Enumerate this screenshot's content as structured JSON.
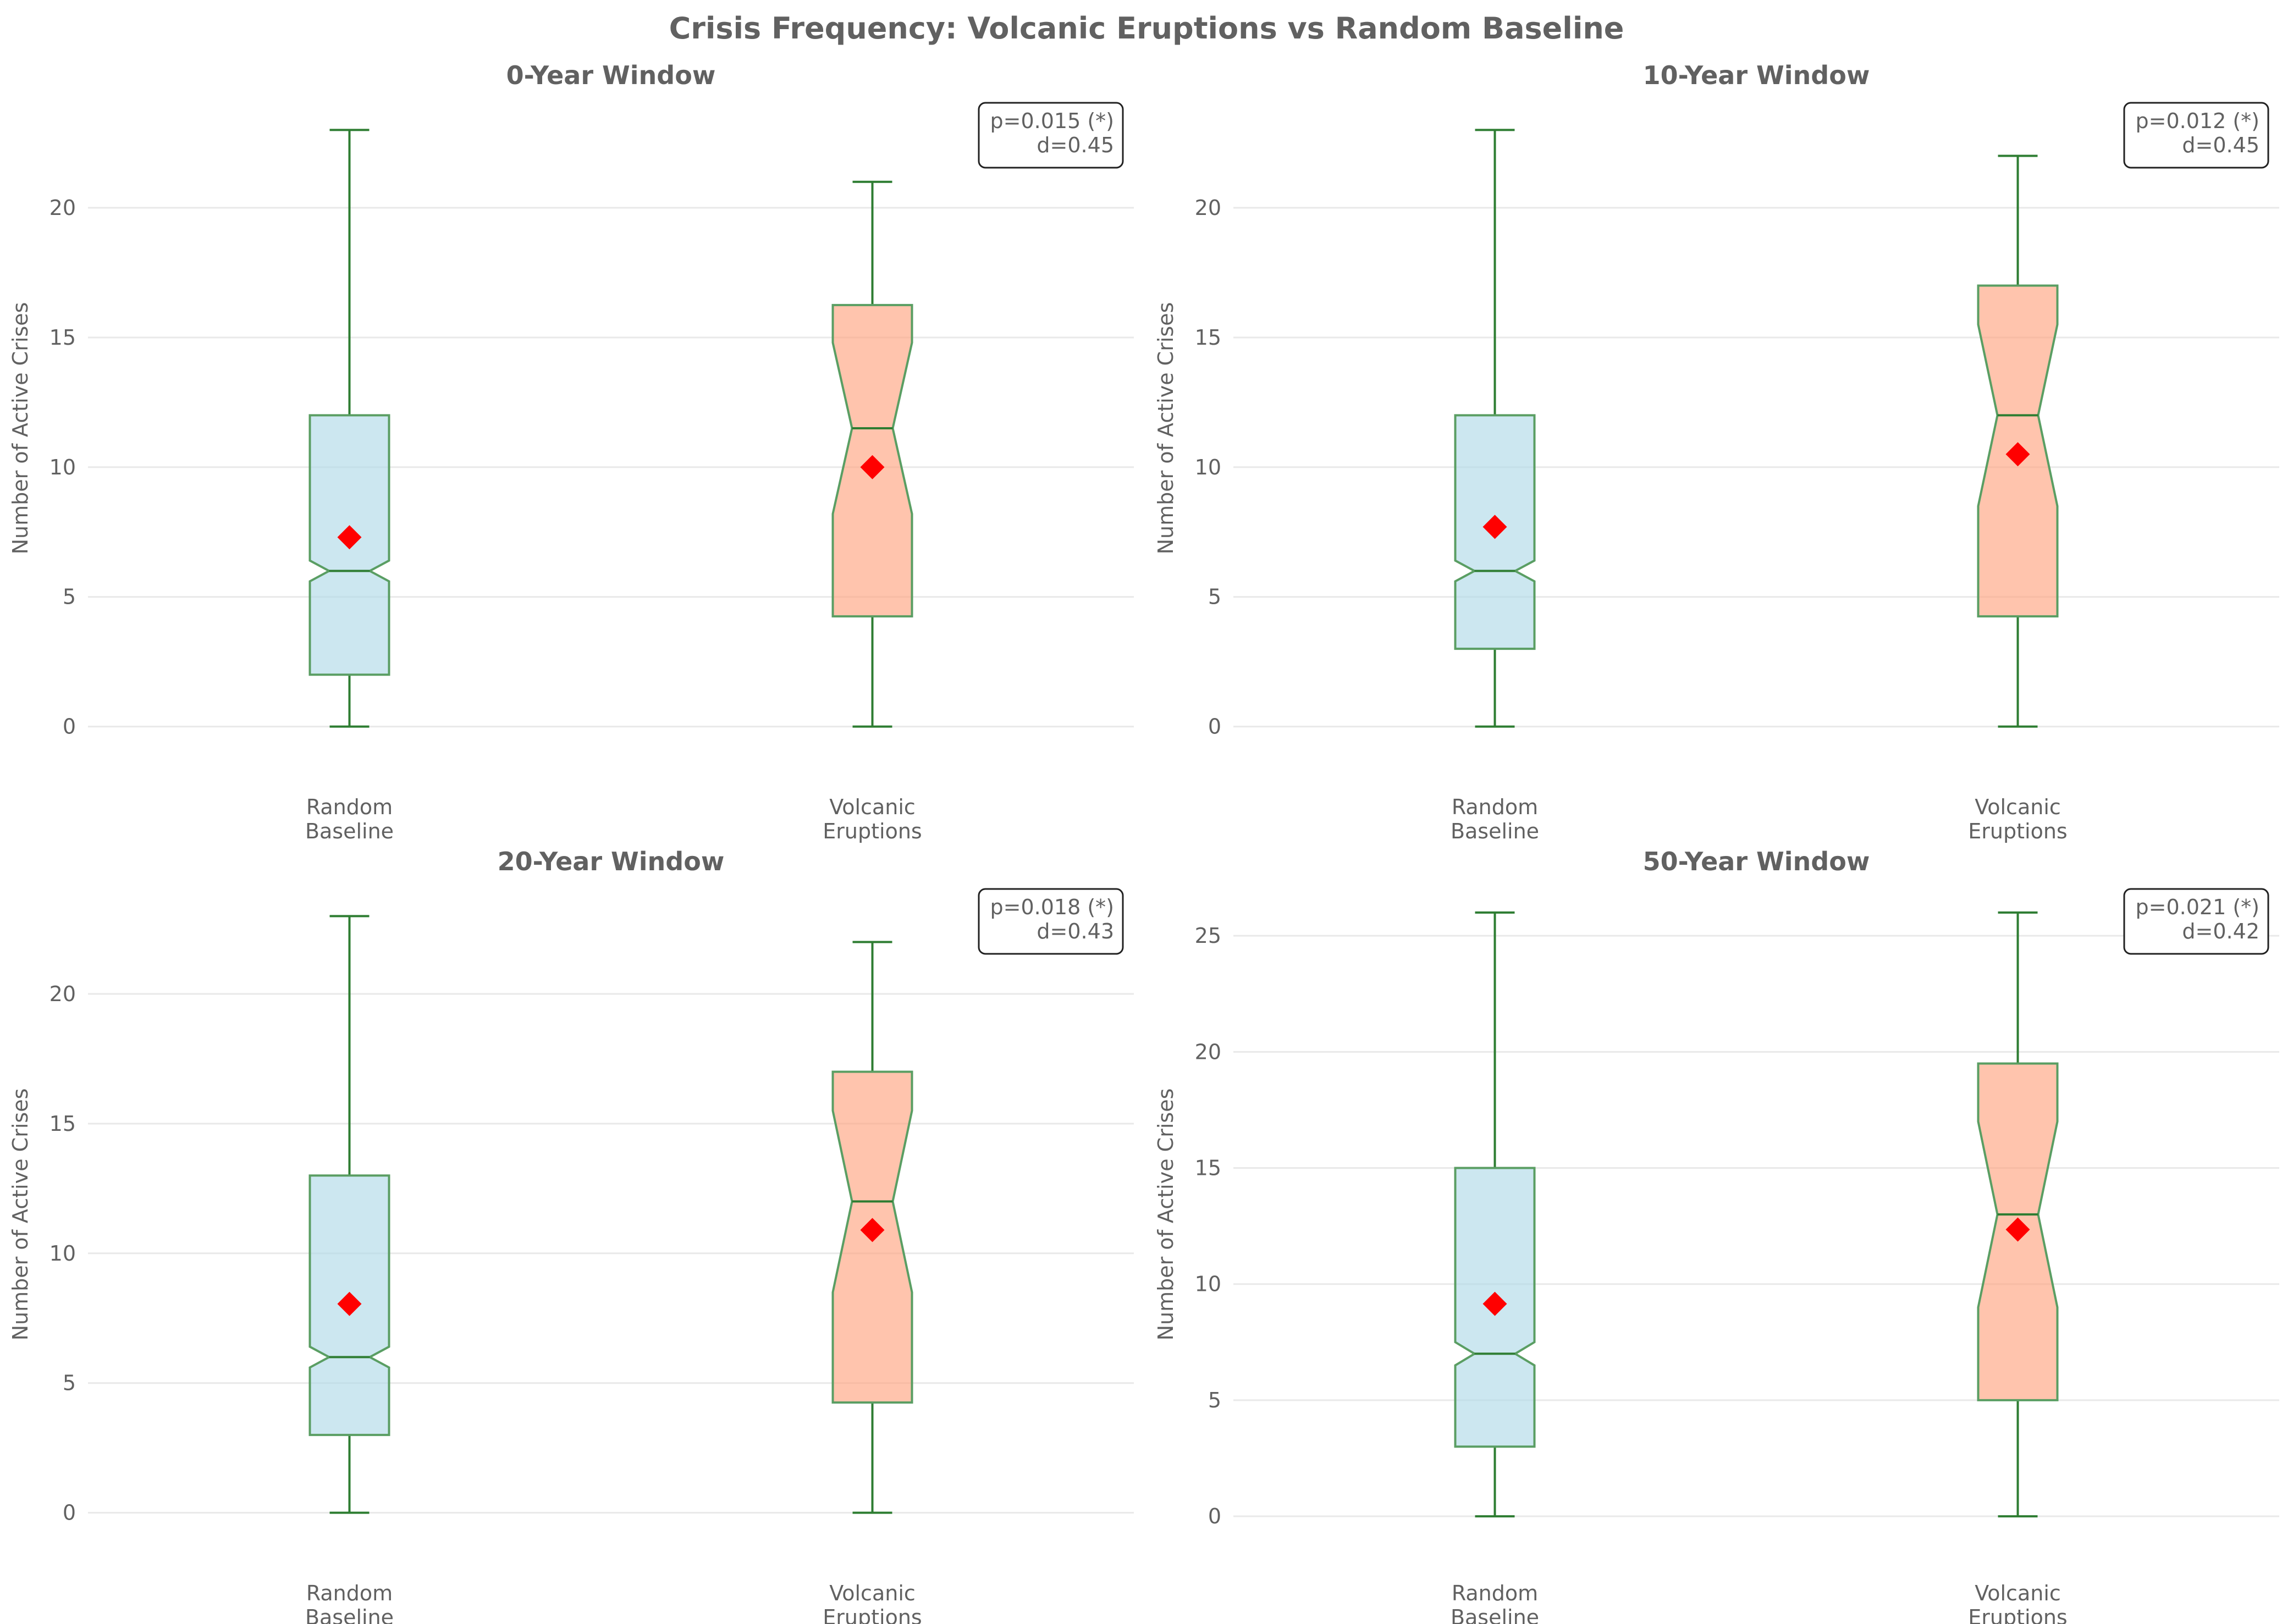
{
  "title": "Crisis Frequency: Volcanic Eruptions vs Random Baseline",
  "colors": {
    "baseline_fill": "#add8e6",
    "volcanic_fill": "#ffa07a",
    "box_edge": "#5a9e63",
    "whisker": "#2e7d32",
    "mean_marker": "#ff0000",
    "text": "#616161"
  },
  "chart_data": [
    {
      "type": "box",
      "title": "0-Year Window",
      "ylabel": "Number of Active Crises",
      "categories": [
        [
          "Random",
          "Baseline"
        ],
        [
          "Volcanic",
          "Eruptions"
        ]
      ],
      "ylim": [
        -1.3,
        24.3
      ],
      "yticks": [
        0,
        5,
        10,
        15,
        20
      ],
      "notched": true,
      "grid": "y",
      "stats_text": [
        "p=0.015 (*)",
        "d=0.45"
      ],
      "boxes": [
        {
          "whislo": 0,
          "q1": 2,
          "median": 6,
          "q3": 12,
          "whishi": 23,
          "mean": 7.3,
          "notch_lo": 5.6,
          "notch_hi": 6.4
        },
        {
          "whislo": 0,
          "q1": 4.25,
          "median": 11.5,
          "q3": 16.25,
          "whishi": 21,
          "mean": 10,
          "notch_lo": 8.2,
          "notch_hi": 14.8
        }
      ]
    },
    {
      "type": "box",
      "title": "10-Year Window",
      "ylabel": "Number of Active Crises",
      "categories": [
        [
          "Random",
          "Baseline"
        ],
        [
          "Volcanic",
          "Eruptions"
        ]
      ],
      "ylim": [
        -1.3,
        24.3
      ],
      "yticks": [
        0,
        5,
        10,
        15,
        20
      ],
      "notched": true,
      "grid": "y",
      "stats_text": [
        "p=0.012 (*)",
        "d=0.45"
      ],
      "boxes": [
        {
          "whislo": 0,
          "q1": 3,
          "median": 6,
          "q3": 12,
          "whishi": 23,
          "mean": 7.7,
          "notch_lo": 5.6,
          "notch_hi": 6.4
        },
        {
          "whislo": 0,
          "q1": 4.25,
          "median": 12,
          "q3": 17,
          "whishi": 22,
          "mean": 10.5,
          "notch_lo": 8.5,
          "notch_hi": 15.5
        }
      ]
    },
    {
      "type": "box",
      "title": "20-Year Window",
      "ylabel": "Number of Active Crises",
      "categories": [
        [
          "Random",
          "Baseline"
        ],
        [
          "Volcanic",
          "Eruptions"
        ]
      ],
      "ylim": [
        -1.3,
        24.3
      ],
      "yticks": [
        0,
        5,
        10,
        15,
        20
      ],
      "notched": true,
      "grid": "y",
      "stats_text": [
        "p=0.018 (*)",
        "d=0.43"
      ],
      "boxes": [
        {
          "whislo": 0,
          "q1": 3,
          "median": 6,
          "q3": 13,
          "whishi": 23,
          "mean": 8.05,
          "notch_lo": 5.6,
          "notch_hi": 6.4
        },
        {
          "whislo": 0,
          "q1": 4.25,
          "median": 12,
          "q3": 17,
          "whishi": 22,
          "mean": 10.9,
          "notch_lo": 8.5,
          "notch_hi": 15.5
        }
      ]
    },
    {
      "type": "box",
      "title": "50-Year Window",
      "ylabel": "Number of Active Crises",
      "categories": [
        [
          "Random",
          "Baseline"
        ],
        [
          "Volcanic",
          "Eruptions"
        ]
      ],
      "ylim": [
        -1.3,
        27.3
      ],
      "yticks": [
        0,
        5,
        10,
        15,
        20,
        25
      ],
      "notched": true,
      "grid": "y",
      "stats_text": [
        "p=0.021 (*)",
        "d=0.42"
      ],
      "boxes": [
        {
          "whislo": 0,
          "q1": 3,
          "median": 7,
          "q3": 15,
          "whishi": 26,
          "mean": 9.15,
          "notch_lo": 6.5,
          "notch_hi": 7.5
        },
        {
          "whislo": 0,
          "q1": 5,
          "median": 13,
          "q3": 19.5,
          "whishi": 26,
          "mean": 12.35,
          "notch_lo": 9,
          "notch_hi": 17
        }
      ]
    }
  ]
}
